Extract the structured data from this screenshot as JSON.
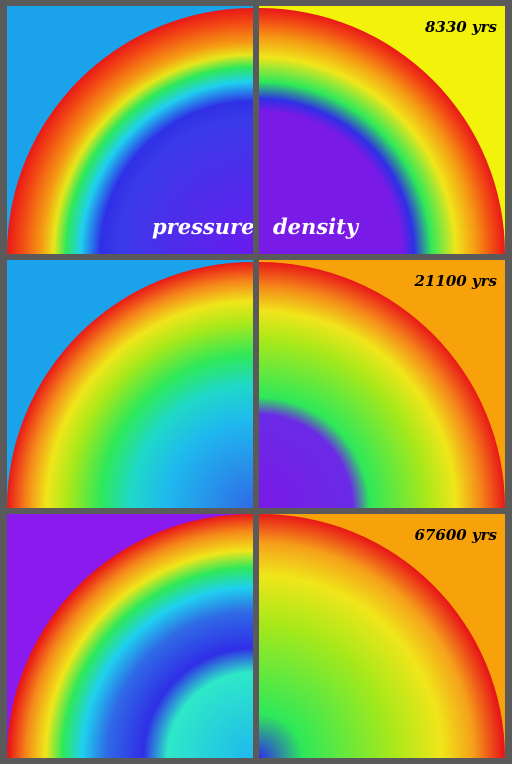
{
  "labels": {
    "pressure": "pressure",
    "density": "density"
  },
  "rows": [
    {
      "time": "8330 yrs"
    },
    {
      "time": "21100 yrs"
    },
    {
      "time": "67600 yrs"
    }
  ],
  "colors": {
    "frame": "#5a5a5a",
    "pressure_bg_row1": "#1aa2ea",
    "pressure_bg_row2": "#1aa2ea",
    "pressure_bg_row3": "#8a1aee",
    "density_bg_row1": "#f2f20a",
    "density_bg_row2": "#f7a20a",
    "density_bg_row3": "#f7a20a",
    "shell_outer": "#e81818",
    "interior_blue": "#2f2fe6",
    "interior_violet": "#7a1ae6"
  }
}
